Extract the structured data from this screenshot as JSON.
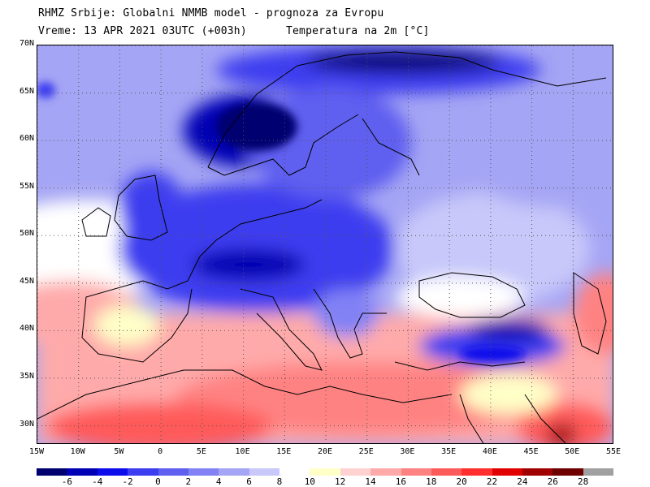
{
  "header": {
    "line1": "RHMZ Srbije: Globalni NMMB model - prognoza za Evropu",
    "line2": "Vreme: 13 APR 2021 03UTC (+003h)",
    "variable": "Temperatura na 2m [°C]"
  },
  "map": {
    "lon_range": [
      -15,
      55
    ],
    "lat_range": [
      28,
      70
    ],
    "lat_ticks": [
      "70N",
      "65N",
      "60N",
      "55N",
      "50N",
      "45N",
      "40N",
      "35N",
      "30N"
    ],
    "lon_ticks": [
      "15W",
      "10W",
      "5W",
      "0",
      "5E",
      "10E",
      "15E",
      "20E",
      "25E",
      "30E",
      "35E",
      "40E",
      "45E",
      "50E",
      "55E"
    ],
    "grid": true
  },
  "legend": {
    "colors": [
      "#00006f",
      "#0000b4",
      "#0d0deb",
      "#3c3cf0",
      "#5f5ff0",
      "#8282f5",
      "#a5a5f5",
      "#c8c8fa",
      "#ffffff",
      "#ffffc8",
      "#ffd2d2",
      "#ffaaaa",
      "#ff8282",
      "#ff5a5a",
      "#ff2d2d",
      "#e10000",
      "#a00000",
      "#6e0000",
      "#a0a0a0"
    ],
    "labels": [
      "-6",
      "-4",
      "-2",
      "0",
      "2",
      "4",
      "6",
      "8",
      "10",
      "12",
      "14",
      "16",
      "18",
      "20",
      "22",
      "24",
      "26",
      "28"
    ]
  }
}
